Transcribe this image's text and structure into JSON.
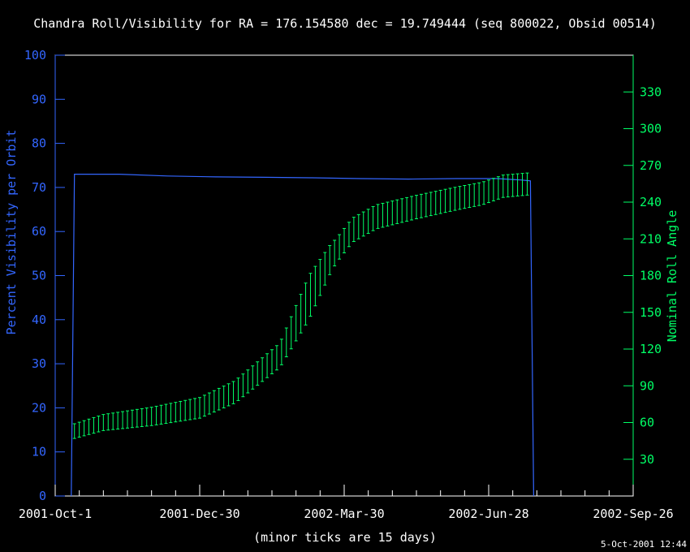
{
  "chart_data": {
    "type": "line",
    "title": "Chandra Roll/Visibility for RA = 176.154580 dec = 19.749444 (seq 800022, Obsid 00514)",
    "xlabel": "(minor ticks are 15 days)",
    "timestamp": "5-Oct-2001 12:44",
    "x_tick_labels": [
      "2001-Oct-1",
      "2001-Dec-30",
      "2002-Mar-30",
      "2002-Jun-28",
      "2002-Sep-26"
    ],
    "x_tick_days": [
      0,
      90,
      180,
      270,
      360
    ],
    "x_range_days": [
      0,
      360
    ],
    "x_minor_tick_step_days": 15,
    "left_axis": {
      "label": "Percent Visibility per Orbit",
      "range": [
        0,
        100
      ],
      "ticks": [
        0,
        10,
        20,
        30,
        40,
        50,
        60,
        70,
        80,
        90,
        100
      ],
      "color": "#3366ff"
    },
    "right_axis": {
      "label": "Nominal Roll Angle",
      "range": [
        0,
        360
      ],
      "ticks": [
        30,
        60,
        90,
        120,
        150,
        180,
        210,
        240,
        270,
        300,
        330
      ],
      "color": "#00ff66"
    },
    "frame_color": "#ffffff",
    "series": [
      {
        "axis": "left",
        "color": "#3366ff",
        "points_days": [
          [
            10,
            0
          ],
          [
            12,
            73
          ],
          [
            40,
            73
          ],
          [
            70,
            72.6
          ],
          [
            100,
            72.4
          ],
          [
            130,
            72.3
          ],
          [
            160,
            72.2
          ],
          [
            190,
            72
          ],
          [
            220,
            71.9
          ],
          [
            250,
            72
          ],
          [
            275,
            72
          ],
          [
            290,
            71.7
          ],
          [
            296,
            71.5
          ],
          [
            298,
            0
          ]
        ]
      },
      {
        "axis": "right",
        "color": "#00ff66",
        "marker": "error-bar",
        "start_day": 12,
        "end_day": 296,
        "step_days": 3,
        "roll_points_days": [
          [
            12,
            53
          ],
          [
            30,
            60
          ],
          [
            60,
            65
          ],
          [
            90,
            72
          ],
          [
            112,
            85
          ],
          [
            140,
            115
          ],
          [
            158,
            162
          ],
          [
            172,
            195
          ],
          [
            185,
            217
          ],
          [
            200,
            228
          ],
          [
            225,
            236
          ],
          [
            250,
            243
          ],
          [
            266,
            247
          ],
          [
            279,
            253
          ],
          [
            296,
            255
          ]
        ],
        "tolerance_points_days": [
          [
            12,
            6
          ],
          [
            140,
            10
          ],
          [
            158,
            18
          ],
          [
            175,
            10
          ],
          [
            296,
            9
          ]
        ]
      }
    ]
  }
}
